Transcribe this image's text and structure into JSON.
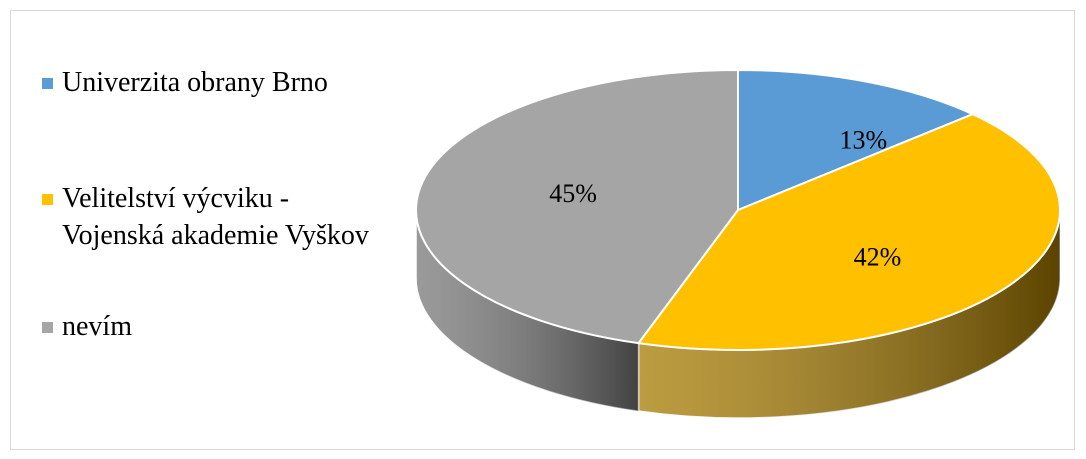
{
  "chart_data": {
    "type": "pie",
    "three_d": true,
    "legend_position": "left",
    "labels": [
      "Univerzita obrany Brno",
      "Velitelství výcviku - Vojenská akademie Vyškov",
      "nevím"
    ],
    "values": [
      13,
      42,
      45
    ],
    "data_labels": [
      "13%",
      "42%",
      "45%"
    ],
    "colors": [
      "#5b9bd5",
      "#ffc000",
      "#a5a5a5"
    ],
    "side_colors": [
      "#3a6f9e",
      "#a67b00",
      "#787878"
    ]
  }
}
